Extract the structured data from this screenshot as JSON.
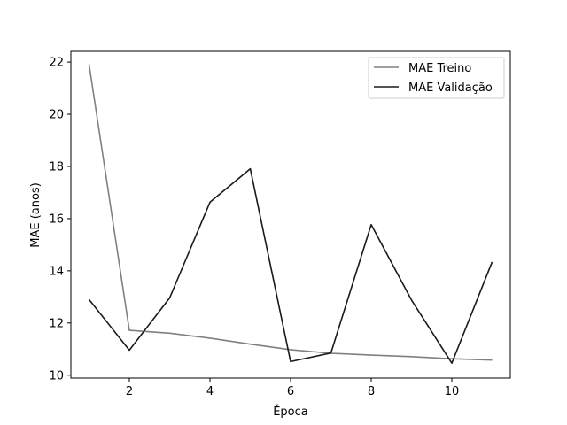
{
  "chart_data": {
    "type": "line",
    "title": "",
    "xlabel": "Época",
    "ylabel": "MAE (anos)",
    "xlim": [
      0.55,
      11.45
    ],
    "ylim": [
      9.89,
      22.41
    ],
    "xticks": [
      2,
      4,
      6,
      8,
      10
    ],
    "yticks": [
      10,
      12,
      14,
      16,
      18,
      20,
      22
    ],
    "grid": false,
    "legend_position": "top-right",
    "x": [
      1,
      2,
      3,
      4,
      5,
      6,
      7,
      8,
      9,
      10,
      11
    ],
    "series": [
      {
        "name": "MAE Treino",
        "color": "#808080",
        "values": [
          21.92,
          11.72,
          11.61,
          11.42,
          11.19,
          10.98,
          10.84,
          10.77,
          10.71,
          10.63,
          10.58
        ]
      },
      {
        "name": "MAE Validação",
        "color": "#1a1a1a",
        "values": [
          12.9,
          10.96,
          12.96,
          16.63,
          17.91,
          10.52,
          10.85,
          15.77,
          12.88,
          10.46,
          14.34
        ]
      }
    ]
  }
}
